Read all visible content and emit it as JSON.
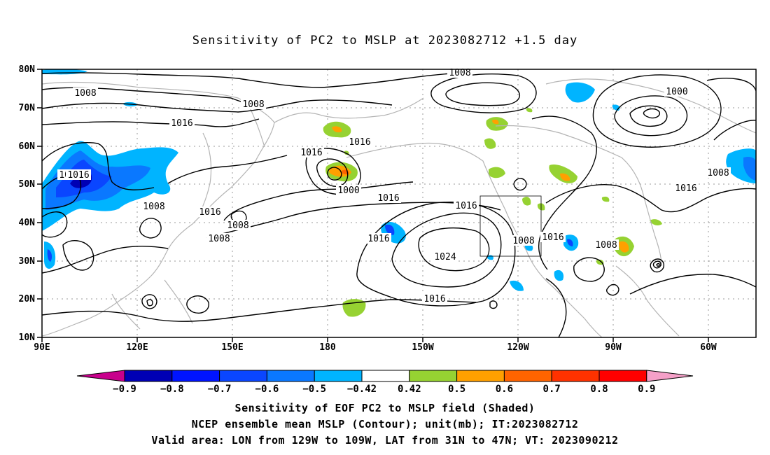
{
  "title": "Sensitivity of PC2 to MSLP at 2023082712 +1.5 day",
  "captions": [
    "Sensitivity of EOF PC2 to MSLP field (Shaded)",
    "NCEP ensemble mean MSLP (Contour); unit(mb); IT:2023082712",
    "Valid area: LON from 129W to 109W, LAT from 31N to 47N; VT: 2023090212"
  ],
  "lat_labels": [
    "80N",
    "70N",
    "60N",
    "50N",
    "40N",
    "30N",
    "20N",
    "10N"
  ],
  "lon_labels": [
    "90E",
    "120E",
    "150E",
    "180",
    "150W",
    "120W",
    "90W",
    "60W"
  ],
  "contour_labels": [
    "1008",
    "1016",
    "1008",
    "1016",
    "1008",
    "1000",
    "1016",
    "1008",
    "1016",
    "1016",
    "1016",
    "1016",
    "1024",
    "1016",
    "1008",
    "1016",
    "1008",
    "1000",
    "1008",
    "1016",
    "1016",
    "1008",
    "1008",
    "1016"
  ],
  "colorbar": {
    "tick_labels": [
      "-0.9",
      "-0.8",
      "-0.7",
      "-0.6",
      "-0.5",
      "-0.42",
      "0.42",
      "0.5",
      "0.6",
      "0.7",
      "0.8",
      "0.9"
    ],
    "colors": [
      "#c8008c",
      "#0000b4",
      "#0014ff",
      "#0a46ff",
      "#0a78ff",
      "#00b4ff",
      "#ffffff",
      "#96d232",
      "#ffa000",
      "#ff6400",
      "#ff3200",
      "#ff0000",
      "#f5a0c8"
    ]
  },
  "valid_area": {
    "lon": [
      "129W",
      "109W"
    ],
    "lat": [
      "31N",
      "47N"
    ]
  }
}
